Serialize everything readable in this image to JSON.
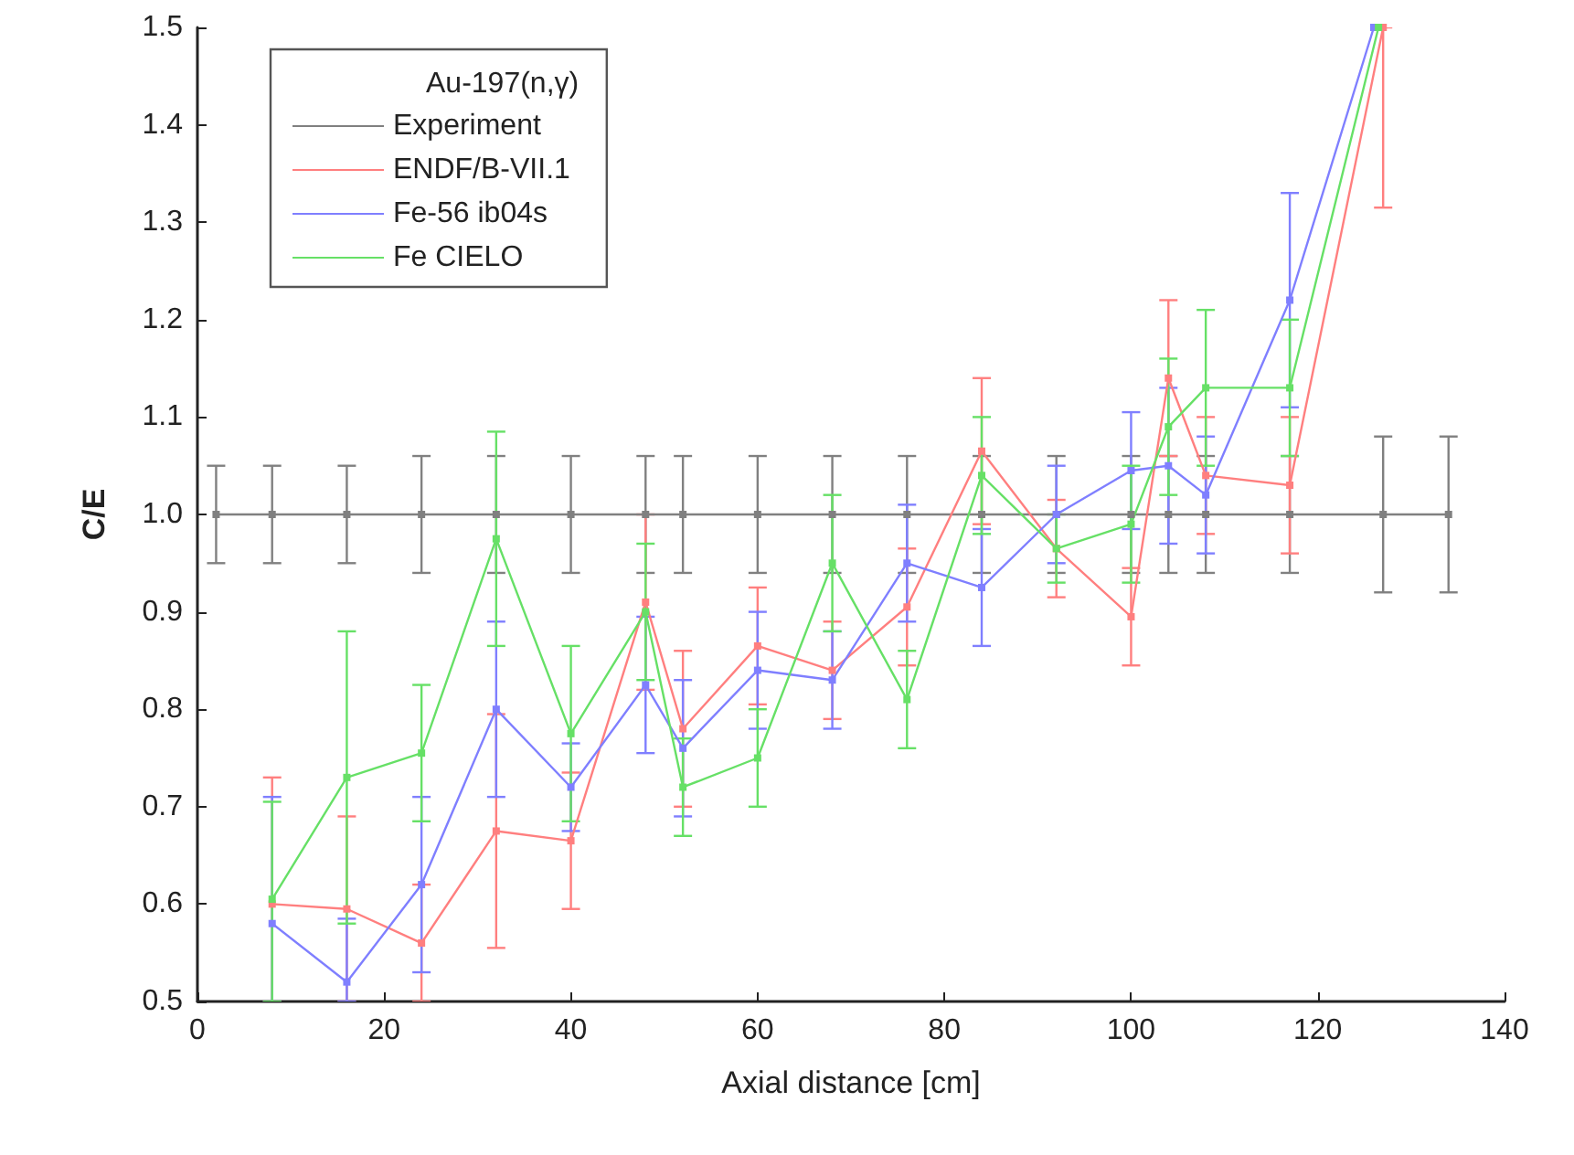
{
  "chart_data": {
    "type": "line",
    "xlabel": "Axial distance [cm]",
    "ylabel": "C/E",
    "legend_title": "Au-197(n,γ)",
    "legend": "top left",
    "grid": false,
    "marker": "square",
    "line_style": "solid",
    "xlim": [
      0,
      140
    ],
    "xticks": [
      0,
      20,
      40,
      60,
      80,
      100,
      120,
      140
    ],
    "ylim": [
      0.5,
      1.5
    ],
    "yticks": [
      0.5,
      0.6,
      0.7,
      0.8,
      0.9,
      {
        "value": 1,
        "label": "1.0"
      },
      1.1,
      1.2,
      1.3,
      1.4,
      1.5
    ],
    "series": [
      {
        "name": "Experiment",
        "color": "#808080",
        "x": [
          2,
          8,
          16,
          24,
          32,
          40,
          48,
          52,
          60,
          68,
          76,
          84,
          92,
          100,
          104,
          108,
          117,
          127,
          134
        ],
        "values": [
          1,
          1,
          1,
          1,
          1,
          1,
          1,
          1,
          1,
          1,
          1,
          1,
          1,
          1,
          1,
          1,
          1,
          1,
          1
        ],
        "errors": [
          0.05,
          0.05,
          0.05,
          0.06,
          0.06,
          0.06,
          0.06,
          0.06,
          0.06,
          0.06,
          0.06,
          0.06,
          0.06,
          0.06,
          0.06,
          0.06,
          0.06,
          0.08,
          0.08
        ]
      },
      {
        "name": "ENDF/B-VII.1",
        "color": "#ff7f7f",
        "x": [
          8,
          16,
          24,
          32,
          40,
          48,
          52,
          60,
          68,
          76,
          84,
          92,
          100,
          104,
          108,
          117,
          127
        ],
        "values": [
          0.6,
          0.595,
          0.56,
          0.675,
          0.665,
          0.91,
          0.78,
          0.865,
          0.84,
          0.905,
          1.065,
          0.965,
          0.895,
          1.14,
          1.04,
          1.03,
          1.5
        ],
        "errors": [
          [
            0.5,
            0.73
          ],
          0.095,
          0.06,
          0.12,
          0.07,
          0.09,
          0.08,
          0.06,
          0.05,
          0.06,
          0.075,
          0.05,
          0.05,
          0.08,
          0.06,
          0.07,
          [
            1.315,
            1.5
          ]
        ]
      },
      {
        "name": "Fe-56 ib04s",
        "color": "#7f7fff",
        "x": [
          8,
          16,
          24,
          32,
          40,
          48,
          52,
          60,
          68,
          76,
          84,
          92,
          100,
          104,
          108,
          117,
          126
        ],
        "values": [
          0.58,
          0.52,
          0.62,
          0.8,
          0.72,
          0.825,
          0.76,
          0.84,
          0.83,
          0.95,
          0.925,
          1,
          1.045,
          1.05,
          1.02,
          1.22,
          1.5
        ],
        "errors": [
          [
            0.5,
            0.71
          ],
          [
            0.5,
            0.585
          ],
          0.09,
          0.09,
          0.045,
          0.07,
          0.07,
          0.06,
          0.05,
          0.06,
          0.06,
          0.05,
          0.06,
          0.08,
          0.06,
          0.11,
          null
        ]
      },
      {
        "name": "Fe CIELO",
        "color": "#66e066",
        "x": [
          8,
          16,
          24,
          32,
          40,
          48,
          52,
          60,
          68,
          76,
          84,
          92,
          100,
          104,
          108,
          117,
          126.5
        ],
        "values": [
          0.605,
          0.73,
          0.755,
          0.975,
          0.775,
          0.9,
          0.72,
          0.75,
          0.95,
          0.81,
          1.04,
          0.965,
          0.99,
          1.09,
          1.13,
          1.13,
          1.5
        ],
        "errors": [
          [
            0.5,
            0.705
          ],
          0.15,
          0.07,
          0.11,
          0.09,
          0.07,
          0.05,
          0.05,
          0.07,
          0.05,
          0.06,
          0.035,
          0.06,
          0.07,
          0.08,
          0.07,
          null
        ]
      }
    ]
  }
}
